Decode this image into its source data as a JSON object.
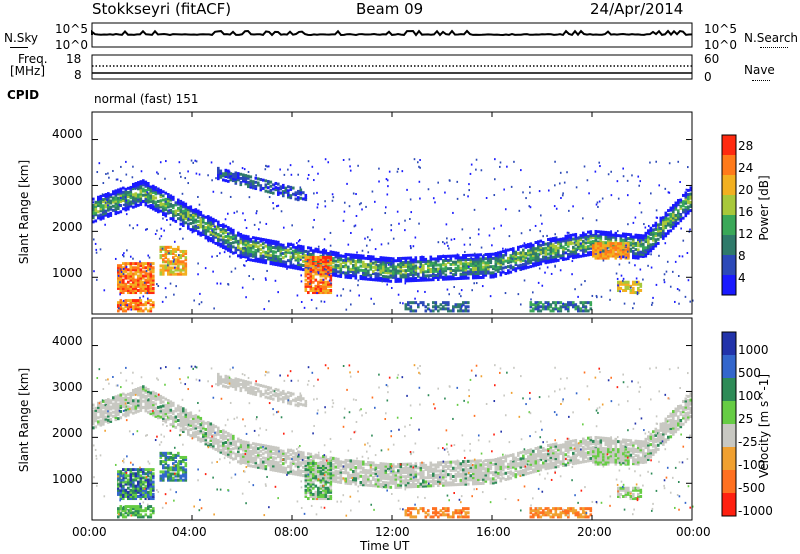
{
  "header": {
    "radar": "Stokkseyri (fitACF)",
    "beam": "Beam 09",
    "date": "24/Apr/2014"
  },
  "nsky_panel": {
    "left_label": "N.Sky",
    "right_label": "N.Search",
    "left_ticks": [
      "10^5",
      "10^0"
    ],
    "right_ticks": [
      "10^5",
      "10^0"
    ]
  },
  "freq_panel": {
    "left_label_line1": "Freq.",
    "left_label_line2": "[MHz]",
    "right_label": "Nave",
    "left_ticks": [
      "18",
      "8"
    ],
    "right_ticks": [
      "60",
      "0"
    ]
  },
  "cpid": {
    "label": "CPID",
    "value": "normal (fast) 151"
  },
  "chart_data": [
    {
      "type": "heatmap",
      "title": "",
      "quantity": "Power",
      "ylabel": "Slant Range [km]",
      "ylim": [
        200,
        4600
      ],
      "yticks": [
        "1000",
        "2000",
        "3000",
        "4000"
      ],
      "colorbar": {
        "label": "Power [dB]",
        "ticks": [
          "4",
          "8",
          "12",
          "16",
          "20",
          "24",
          "28"
        ],
        "colors": [
          "#1a1aff",
          "#2c49b8",
          "#2f7a6a",
          "#3aa858",
          "#a8c83a",
          "#f2b020",
          "#ff7a1a",
          "#ff2a10"
        ]
      },
      "features": [
        {
          "name": "main-band",
          "time_h": [
            0,
            24
          ],
          "range_km": [
            2500,
            2900,
            2300,
            1700,
            1500,
            1300,
            1200,
            1250,
            1300,
            1600,
            1800,
            1700,
            2800
          ]
        },
        {
          "name": "upper-arc",
          "time_h": [
            5,
            8.5
          ],
          "range_km": [
            3300,
            2800
          ]
        }
      ]
    },
    {
      "type": "heatmap",
      "title": "",
      "quantity": "Velocity",
      "ylabel": "Slant Range [km]",
      "ylim": [
        200,
        4600
      ],
      "yticks": [
        "1000",
        "2000",
        "3000",
        "4000"
      ],
      "colorbar": {
        "label": "Velocity [m s^-1]",
        "ticks": [
          "1000",
          "500",
          "100",
          "25",
          "-25",
          "-100",
          "-500",
          "-1000"
        ],
        "colors": [
          "#2233aa",
          "#3366cc",
          "#2e8b57",
          "#66cc44",
          "#c8c8c2",
          "#f0a030",
          "#ff7020",
          "#ff2010"
        ]
      }
    }
  ],
  "xaxis": {
    "label": "Time UT",
    "ticks": [
      "00:00",
      "04:00",
      "08:00",
      "12:00",
      "16:00",
      "20:00",
      "00:00"
    ]
  }
}
